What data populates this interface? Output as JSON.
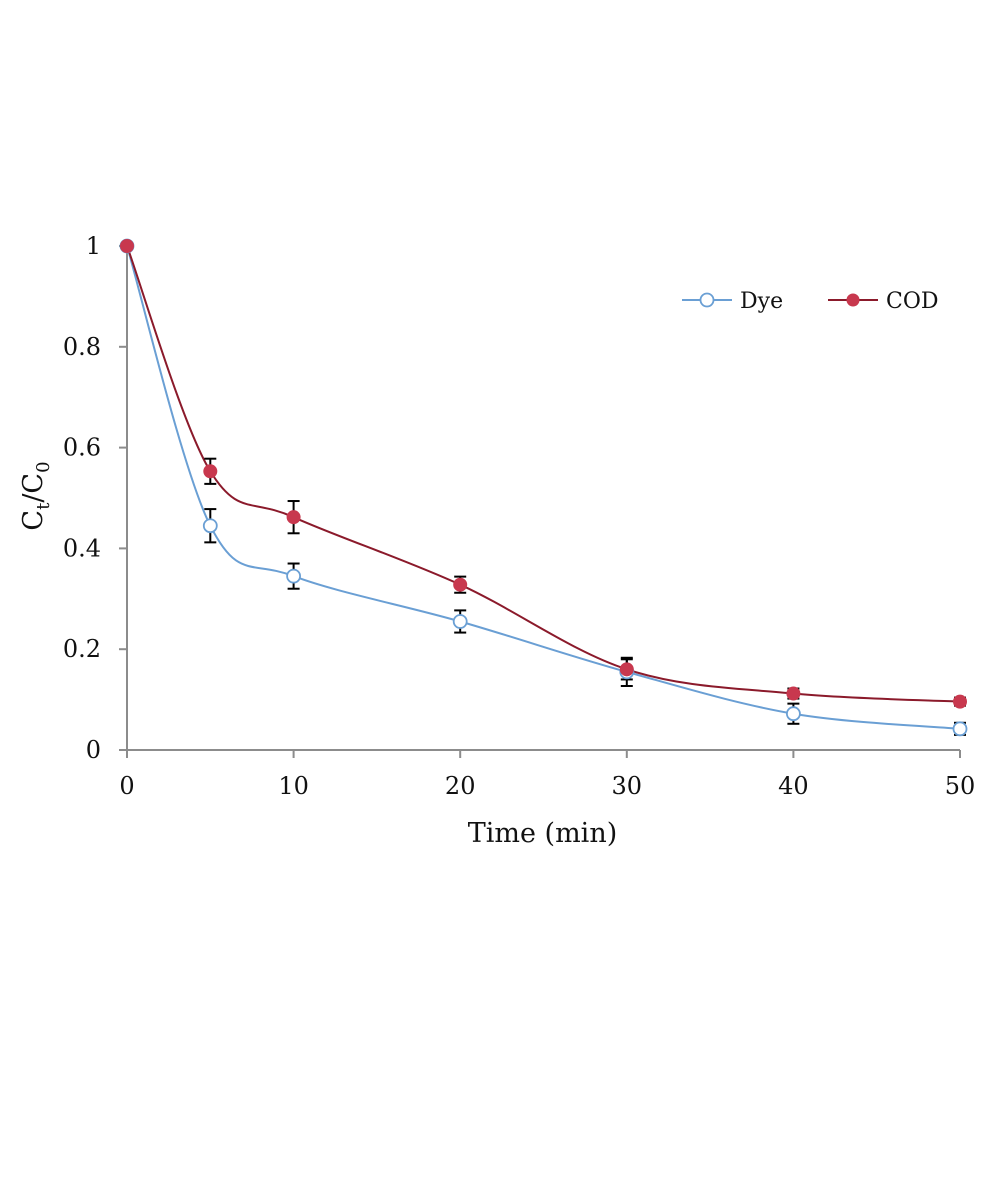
{
  "chart_data": {
    "type": "line",
    "title": "",
    "xlabel": "Time (min)",
    "ylabel": {
      "main": "C",
      "sub_numerator": "t",
      "slash": "/",
      "denominator": "C",
      "sub_denominator": "0"
    },
    "xlim": [
      0,
      50
    ],
    "ylim": [
      0,
      1
    ],
    "x_ticks": [
      0,
      10,
      20,
      30,
      40,
      50
    ],
    "x_tick_labels": [
      "0",
      "10",
      "20",
      "30",
      "40",
      "50"
    ],
    "y_ticks": [
      0,
      0.2,
      0.4,
      0.6,
      0.8,
      1
    ],
    "y_tick_labels": [
      "0",
      "0.2",
      "0.4",
      "0.6",
      "0.8",
      "1"
    ],
    "grid": false,
    "legend_position": "top-right",
    "x": [
      0,
      5,
      10,
      20,
      30,
      40,
      50
    ],
    "series": [
      {
        "name": "Dye",
        "marker": "open-circle",
        "color": "#6a9fd4",
        "values": [
          1.0,
          0.445,
          0.345,
          0.255,
          0.155,
          0.072,
          0.042
        ],
        "errors": [
          0.0,
          0.033,
          0.025,
          0.022,
          0.028,
          0.02,
          0.012
        ]
      },
      {
        "name": "COD",
        "marker": "filled-circle",
        "color": "#8b1a2b",
        "marker_color": "#c8384e",
        "values": [
          1.0,
          0.553,
          0.462,
          0.328,
          0.16,
          0.112,
          0.096
        ],
        "errors": [
          0.0,
          0.025,
          0.032,
          0.016,
          0.02,
          0.01,
          0.008
        ]
      }
    ],
    "error_bar_color": "#000000"
  }
}
